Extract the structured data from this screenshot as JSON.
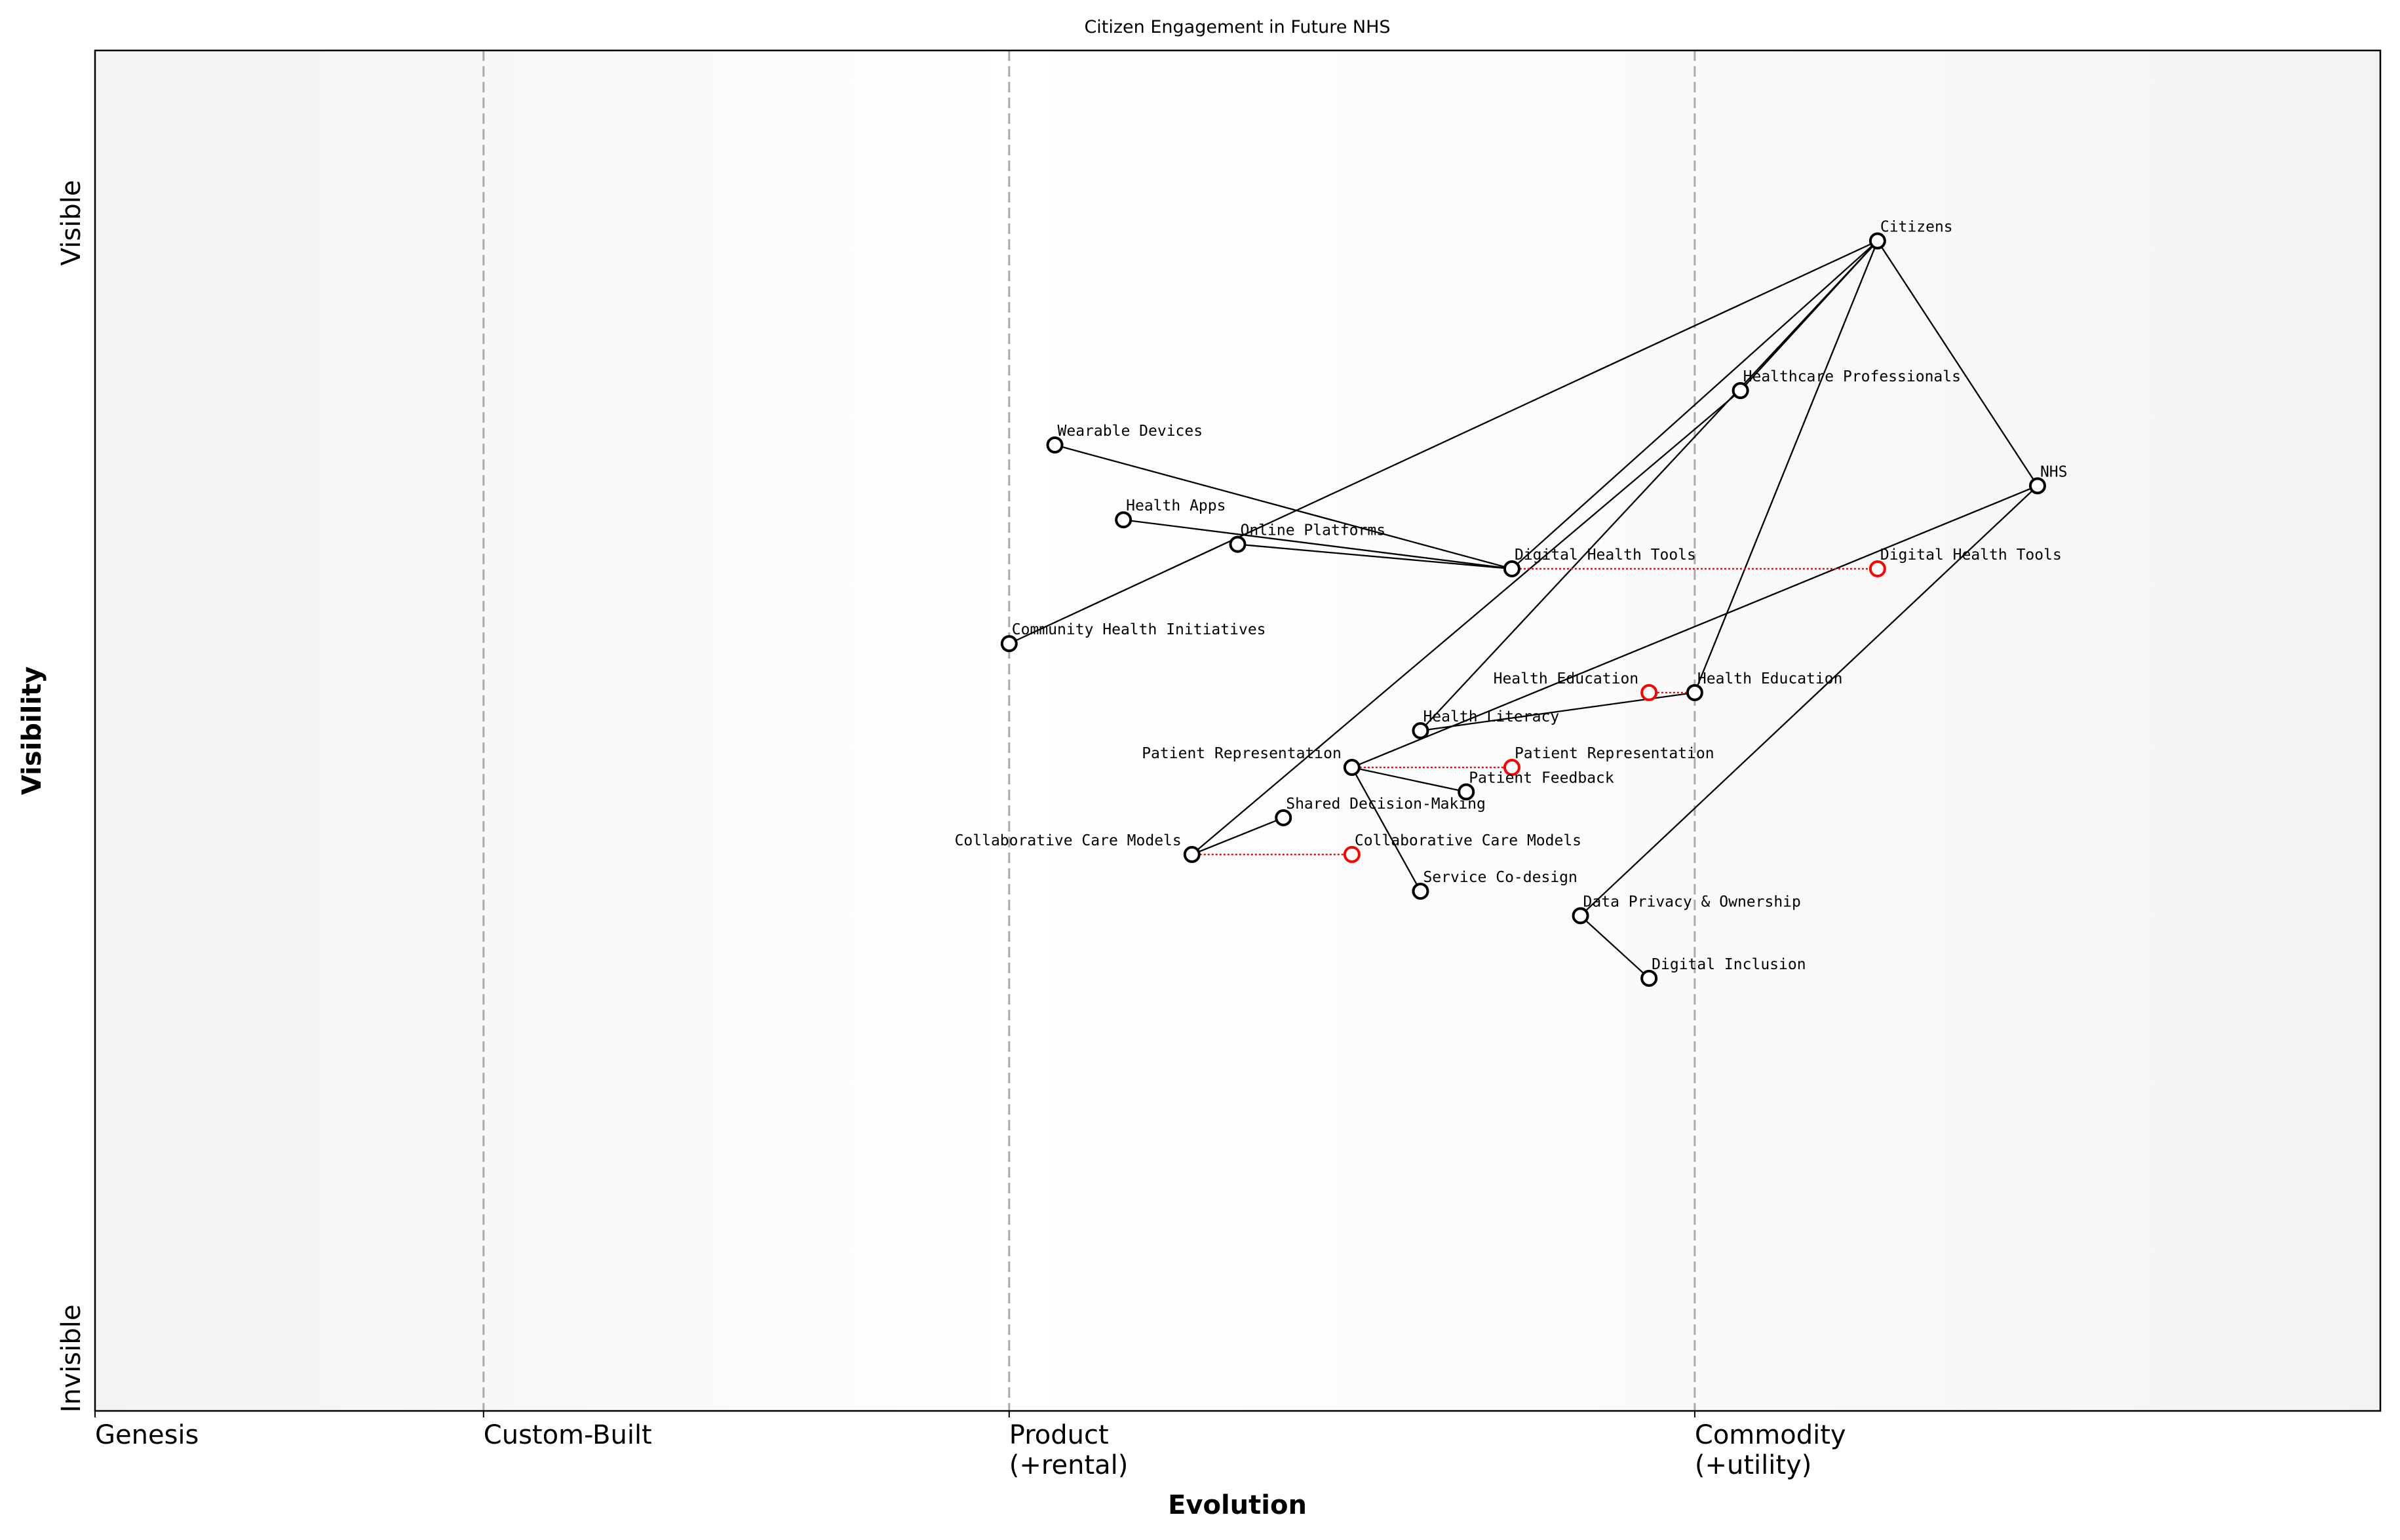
{
  "title": "Citizen Engagement in Future NHS",
  "xlabel": "Evolution",
  "ylabel": "Visibility",
  "y_ticks": {
    "top": "Visible",
    "bottom": "Invisible"
  },
  "stages": [
    {
      "label": "Genesis",
      "x": 0.0
    },
    {
      "label": "Custom-Built",
      "x": 0.17
    },
    {
      "label": "Product\n(+rental)",
      "x": 0.4
    },
    {
      "label": "Commodity\n(+utility)",
      "x": 0.7
    }
  ],
  "colors": {
    "node": "#000000",
    "evolved": "#ff0000",
    "divider": "#aaaaaa",
    "shade": "#f3f3f3"
  },
  "chart_data": {
    "type": "wardley-map",
    "xlim": [
      0,
      1
    ],
    "ylim": [
      0,
      1
    ],
    "components": [
      {
        "name": "Citizens",
        "x": 0.78,
        "y": 0.86
      },
      {
        "name": "Healthcare Professionals",
        "x": 0.72,
        "y": 0.75
      },
      {
        "name": "NHS",
        "x": 0.85,
        "y": 0.68
      },
      {
        "name": "Wearable Devices",
        "x": 0.42,
        "y": 0.71
      },
      {
        "name": "Health Apps",
        "x": 0.45,
        "y": 0.655
      },
      {
        "name": "Online Platforms",
        "x": 0.5,
        "y": 0.637
      },
      {
        "name": "Digital Health Tools",
        "x": 0.62,
        "y": 0.619
      },
      {
        "name": "Community Health Initiatives",
        "x": 0.4,
        "y": 0.564
      },
      {
        "name": "Health Education",
        "x": 0.7,
        "y": 0.528
      },
      {
        "name": "Health Literacy",
        "x": 0.58,
        "y": 0.5
      },
      {
        "name": "Patient Representation",
        "x": 0.55,
        "y": 0.473
      },
      {
        "name": "Patient Feedback",
        "x": 0.6,
        "y": 0.455
      },
      {
        "name": "Shared Decision-Making",
        "x": 0.52,
        "y": 0.436
      },
      {
        "name": "Collaborative Care Models",
        "x": 0.48,
        "y": 0.409
      },
      {
        "name": "Service Co-design",
        "x": 0.58,
        "y": 0.382
      },
      {
        "name": "Data Privacy & Ownership",
        "x": 0.65,
        "y": 0.364
      },
      {
        "name": "Digital Inclusion",
        "x": 0.68,
        "y": 0.318
      }
    ],
    "evolutions": [
      {
        "name": "Digital Health Tools",
        "from": 0.62,
        "to": 0.78
      },
      {
        "name": "Health Education",
        "from": 0.7,
        "to": 0.68
      },
      {
        "name": "Patient Representation",
        "from": 0.55,
        "to": 0.62
      },
      {
        "name": "Collaborative Care Models",
        "from": 0.48,
        "to": 0.55
      }
    ],
    "links": [
      [
        "Citizens",
        "NHS"
      ],
      [
        "Citizens",
        "Healthcare Professionals"
      ],
      [
        "Citizens",
        "Community Health Initiatives"
      ],
      [
        "Citizens",
        "Digital Health Tools"
      ],
      [
        "Citizens",
        "Health Literacy"
      ],
      [
        "Citizens",
        "Health Education"
      ],
      [
        "Healthcare Professionals",
        "Collaborative Care Models"
      ],
      [
        "NHS",
        "Patient Representation"
      ],
      [
        "NHS",
        "Data Privacy & Ownership"
      ],
      [
        "Digital Health Tools",
        "Wearable Devices"
      ],
      [
        "Digital Health Tools",
        "Health Apps"
      ],
      [
        "Digital Health Tools",
        "Online Platforms"
      ],
      [
        "Health Literacy",
        "Health Education"
      ],
      [
        "Patient Representation",
        "Patient Feedback"
      ],
      [
        "Patient Representation",
        "Service Co-design"
      ],
      [
        "Collaborative Care Models",
        "Shared Decision-Making"
      ],
      [
        "Data Privacy & Ownership",
        "Digital Inclusion"
      ]
    ]
  }
}
